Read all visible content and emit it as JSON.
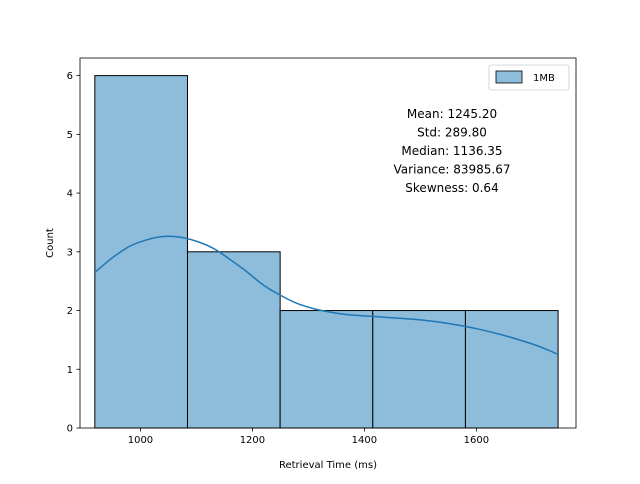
{
  "chart_data": {
    "type": "bar",
    "title": "",
    "xlabel": "Retrieval Time (ms)",
    "ylabel": "Count",
    "xlim": [
      892,
      1778
    ],
    "ylim": [
      0,
      6.3
    ],
    "x_ticks": [
      1000,
      1200,
      1400,
      1600
    ],
    "y_ticks": [
      0,
      1,
      2,
      3,
      4,
      5,
      6
    ],
    "grid": false,
    "bars": [
      {
        "x0": 918.5,
        "x1": 1084.0,
        "count": 6
      },
      {
        "x0": 1084.0,
        "x1": 1249.5,
        "count": 3
      },
      {
        "x0": 1249.5,
        "x1": 1415.0,
        "count": 2
      },
      {
        "x0": 1415.0,
        "x1": 1580.5,
        "count": 2
      },
      {
        "x0": 1580.5,
        "x1": 1746.0,
        "count": 2
      }
    ],
    "kde": {
      "x": [
        918.5,
        950,
        980,
        1010,
        1040,
        1070,
        1100,
        1130,
        1160,
        1190,
        1220,
        1250,
        1280,
        1310,
        1340,
        1370,
        1400,
        1430,
        1460,
        1490,
        1520,
        1550,
        1580,
        1610,
        1640,
        1670,
        1700,
        1730,
        1746
      ],
      "y": [
        2.65,
        2.9,
        3.09,
        3.2,
        3.26,
        3.25,
        3.18,
        3.06,
        2.87,
        2.66,
        2.43,
        2.26,
        2.12,
        2.03,
        1.97,
        1.93,
        1.91,
        1.89,
        1.87,
        1.85,
        1.82,
        1.78,
        1.73,
        1.67,
        1.6,
        1.52,
        1.43,
        1.32,
        1.25
      ]
    },
    "legend": {
      "position": "top-right",
      "entries": [
        {
          "label": "1MB"
        }
      ]
    },
    "stats_lines": [
      "Mean: 1245.20",
      "Std: 289.80",
      "Median: 1136.35",
      "Variance: 83985.67",
      "Skewness: 0.64"
    ],
    "colors": {
      "bar_fill": "#8ebcdb",
      "bar_edge": "#000000",
      "kde_line": "#1f77b4"
    }
  }
}
